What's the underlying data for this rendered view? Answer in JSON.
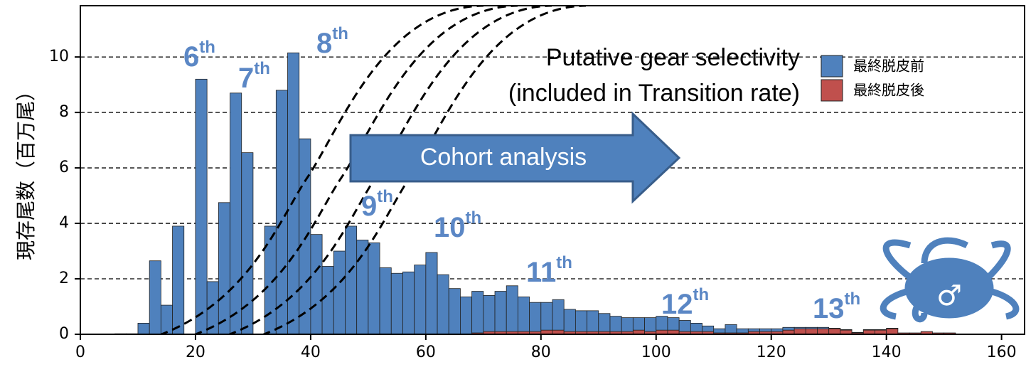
{
  "chart_data": {
    "type": "histogram",
    "y_label": "現存尾数（百万尾）",
    "bins": [
      6,
      8,
      10,
      12,
      14,
      16,
      18,
      20,
      22,
      24,
      26,
      28,
      30,
      32,
      34,
      36,
      38,
      40,
      42,
      44,
      46,
      48,
      50,
      52,
      54,
      56,
      58,
      60,
      62,
      64,
      66,
      68,
      70,
      72,
      74,
      76,
      78,
      80,
      82,
      84,
      86,
      88,
      90,
      92,
      94,
      96,
      98,
      100,
      102,
      104,
      106,
      108,
      110,
      112,
      114,
      116,
      118,
      120,
      122,
      124,
      126,
      128,
      130,
      132,
      134,
      136,
      138,
      140,
      142,
      144,
      146,
      148,
      150,
      152
    ],
    "series": [
      {
        "name": "最終脱皮後",
        "color": "#c0504d",
        "values": [
          0,
          0,
          0,
          0,
          0,
          0,
          0,
          0,
          0,
          0,
          0,
          0,
          0,
          0,
          0,
          0,
          0,
          0,
          0,
          0,
          0,
          0,
          0,
          0,
          0,
          0,
          0,
          0,
          0,
          0,
          0,
          0.05,
          0.1,
          0.1,
          0.1,
          0.1,
          0.1,
          0.15,
          0.15,
          0.1,
          0.1,
          0.1,
          0.1,
          0.1,
          0.1,
          0.15,
          0.1,
          0.15,
          0.15,
          0.1,
          0.1,
          0.1,
          0.05,
          0.05,
          0.05,
          0.1,
          0.1,
          0.1,
          0.15,
          0.2,
          0.2,
          0.2,
          0.2,
          0.15,
          0.05,
          0.15,
          0.15,
          0.2,
          0.05,
          0.05,
          0.1,
          0.05,
          0.05
        ]
      },
      {
        "name": "最終脱皮前",
        "color": "#4f81bd",
        "values": [
          0.02,
          0.02,
          0.4,
          2.65,
          1.05,
          3.9,
          0,
          9.2,
          1.9,
          4.75,
          8.7,
          6.55,
          0,
          3.9,
          8.8,
          10.15,
          7.05,
          3.6,
          2.45,
          3.0,
          3.9,
          3.4,
          3.3,
          2.4,
          2.2,
          2.25,
          2.5,
          2.95,
          2.15,
          1.65,
          1.35,
          1.5,
          1.3,
          1.45,
          1.65,
          1.25,
          1.05,
          1.0,
          1.1,
          0.8,
          0.75,
          0.75,
          0.65,
          0.55,
          0.5,
          0.45,
          0.5,
          0.5,
          0.45,
          0.4,
          0.3,
          0.2,
          0.15,
          0.3,
          0.15,
          0.1,
          0.1,
          0.1,
          0.1,
          0.05,
          0.05,
          0.05,
          0.02,
          0.02,
          0.02,
          0.02,
          0.02,
          0.02,
          0,
          0,
          0,
          0,
          0
        ]
      }
    ],
    "xlim": [
      0,
      164
    ],
    "ylim": [
      0,
      11.85
    ],
    "xticks": [
      0,
      20,
      40,
      60,
      80,
      100,
      120,
      140,
      160
    ],
    "yticks": [
      0,
      2,
      4,
      6,
      8,
      10
    ],
    "grid": true,
    "annotations": [
      {
        "text": "6",
        "sup": "th"
      },
      {
        "text": "7",
        "sup": "th"
      },
      {
        "text": "8",
        "sup": "th"
      },
      {
        "text": "9",
        "sup": "th"
      },
      {
        "text": "10",
        "sup": "th"
      },
      {
        "text": "11",
        "sup": "th"
      },
      {
        "text": "12",
        "sup": "th"
      },
      {
        "text": "13",
        "sup": "th"
      }
    ],
    "selectivity_label": [
      "Putative gear selectivity",
      "(included in Transition rate)"
    ],
    "arrow_label": "Cohort analysis",
    "icon_symbol": "♂"
  }
}
